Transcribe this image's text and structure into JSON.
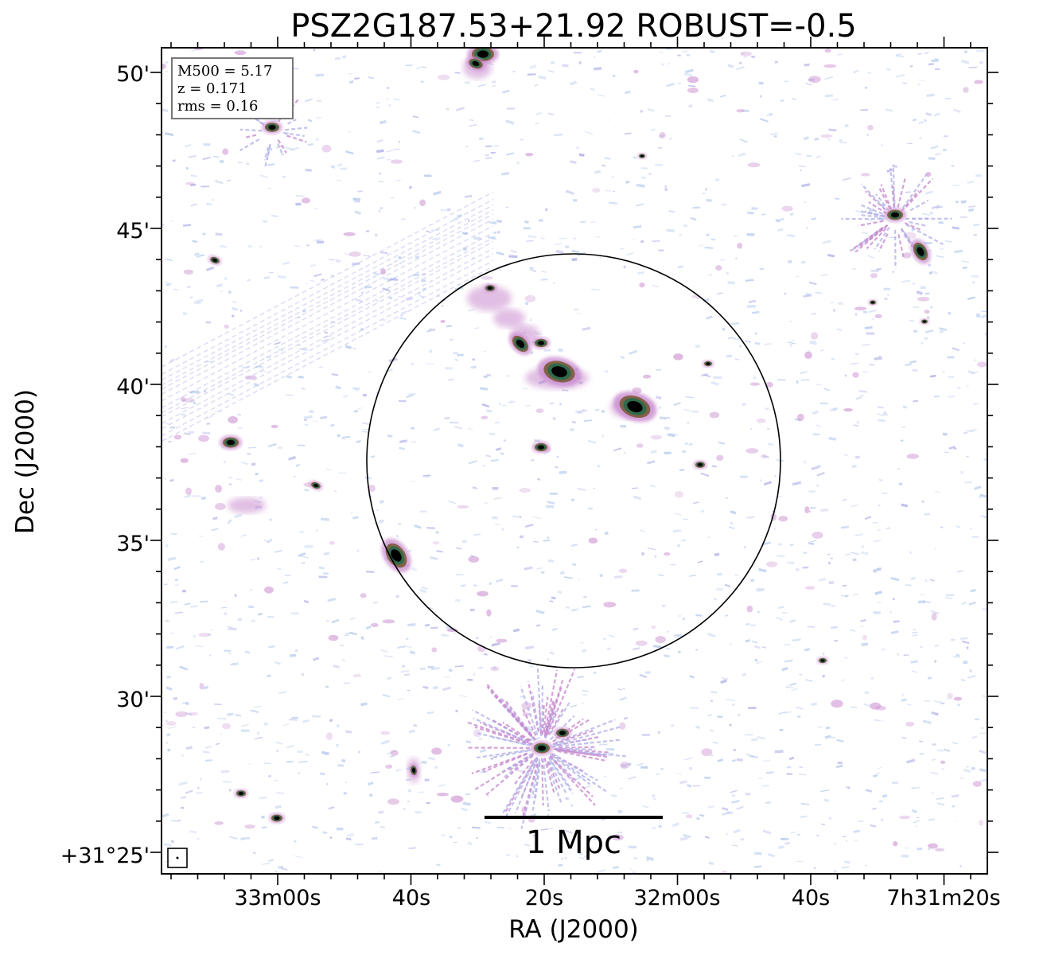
{
  "title": "PSZ2G187.53+21.92 ROBUST=-0.5",
  "axes": {
    "xlabel": "RA (J2000)",
    "ylabel": "Dec (J2000)",
    "x_tick_labels": [
      "33m00s",
      "40s",
      "20s",
      "32m00s",
      "40s",
      "7h31m20s"
    ],
    "y_tick_labels": [
      "50'",
      "45'",
      "40'",
      "35'",
      "30'",
      "+31°25'"
    ]
  },
  "info_box": {
    "line1": "M500 = 5.17",
    "line2": "z = 0.171",
    "line3": "rms = 0.16"
  },
  "scalebar": {
    "label": "1 Mpc"
  },
  "colors": {
    "noise_blue": "#b9cdee",
    "noise_violet": "#b3b3ea",
    "emission_pink": "#c98bcf",
    "emission_brown": "#7a5a3a",
    "emission_green": "#2f6a4a",
    "core": "#000000"
  },
  "icons": {
    "beam": "beam-ellipse-icon",
    "aperture": "r500-circle"
  }
}
